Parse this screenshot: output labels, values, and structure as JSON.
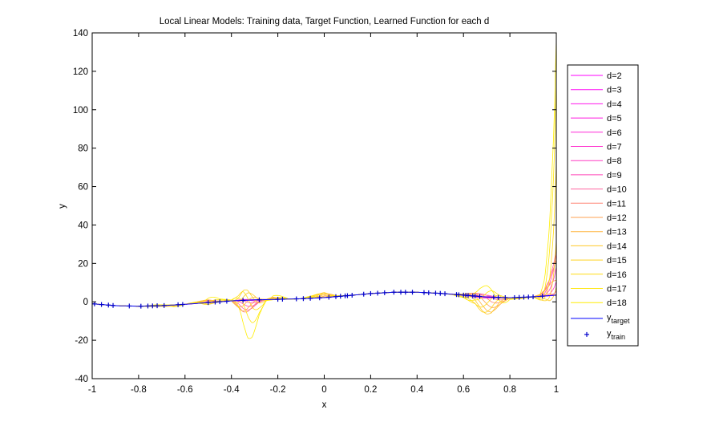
{
  "chart_data": {
    "type": "line",
    "title": "Local Linear Models: Training data, Target Function, Learned Function for each d",
    "xlabel": "x",
    "ylabel": "y",
    "xlim": [
      -1,
      1
    ],
    "ylim": [
      -40,
      140
    ],
    "xticks": [
      -1,
      -0.8,
      -0.6,
      -0.4,
      -0.2,
      0,
      0.2,
      0.4,
      0.6,
      0.8,
      1
    ],
    "xtick_labels": [
      "-1",
      "-0.8",
      "-0.6",
      "-0.4",
      "-0.2",
      "0",
      "0.2",
      "0.4",
      "0.6",
      "0.8",
      "1"
    ],
    "yticks": [
      -40,
      -20,
      0,
      20,
      40,
      60,
      80,
      100,
      120,
      140
    ],
    "ytick_labels": [
      "-40",
      "-20",
      "0",
      "20",
      "40",
      "60",
      "80",
      "100",
      "120",
      "140"
    ],
    "grid": false,
    "legend_position": "right-outside",
    "target_color": "#0000ff",
    "train_marker_color": "#0000cc",
    "series": [
      {
        "name": "d=2",
        "color": "#ff00ff",
        "amp": 0.2
      },
      {
        "name": "d=3",
        "color": "#ff0af5",
        "amp": 0.5
      },
      {
        "name": "d=4",
        "color": "#ff14eb",
        "amp": 0.8
      },
      {
        "name": "d=5",
        "color": "#ff1ee1",
        "amp": 1.0
      },
      {
        "name": "d=6",
        "color": "#ff28d7",
        "amp": 1.3
      },
      {
        "name": "d=7",
        "color": "#ff32cd",
        "amp": 1.6
      },
      {
        "name": "d=8",
        "color": "#ff3cc3",
        "amp": 1.9
      },
      {
        "name": "d=9",
        "color": "#ff46b9",
        "amp": 2.2
      },
      {
        "name": "d=10",
        "color": "#ff64a0",
        "amp": 2.6
      },
      {
        "name": "d=11",
        "color": "#ff8273",
        "amp": 3.0
      },
      {
        "name": "d=12",
        "color": "#ffa050",
        "amp": 3.5
      },
      {
        "name": "d=13",
        "color": "#ffb43c",
        "amp": 4.0
      },
      {
        "name": "d=14",
        "color": "#ffc828",
        "amp": 4.6
      },
      {
        "name": "d=15",
        "color": "#ffd21e",
        "amp": 5.2
      },
      {
        "name": "d=16",
        "color": "#ffdc14",
        "amp": 6.0
      },
      {
        "name": "d=17",
        "color": "#ffe60a",
        "amp": 7.0
      },
      {
        "name": "d=18",
        "color": "#ffee00",
        "amp": 8.0
      }
    ],
    "target_legend": {
      "base": "y",
      "sub": "target"
    },
    "train_legend": {
      "base": "y",
      "sub": "train"
    },
    "target": {
      "x": [
        -1.0,
        -0.9,
        -0.8,
        -0.7,
        -0.6,
        -0.5,
        -0.4,
        -0.3,
        -0.2,
        -0.1,
        0.0,
        0.1,
        0.2,
        0.3,
        0.4,
        0.5,
        0.6,
        0.7,
        0.8,
        0.9,
        1.0
      ],
      "y": [
        -1.0,
        -2.0,
        -2.3,
        -2.0,
        -1.3,
        -0.4,
        0.5,
        1.0,
        1.3,
        1.6,
        2.2,
        3.2,
        4.3,
        5.0,
        5.0,
        4.4,
        3.5,
        2.5,
        2.1,
        2.6,
        3.5
      ]
    },
    "learned_max": {
      "x": [
        -1.0,
        -0.9,
        -0.8,
        -0.72,
        -0.65,
        -0.6,
        -0.55,
        -0.5,
        -0.45,
        -0.4,
        -0.37,
        -0.35,
        -0.33,
        -0.31,
        -0.28,
        -0.25,
        -0.22,
        -0.2,
        -0.15,
        -0.1,
        -0.05,
        0.0,
        0.03,
        0.06,
        0.1,
        0.2,
        0.3,
        0.4,
        0.5,
        0.55,
        0.6,
        0.64,
        0.67,
        0.7,
        0.72,
        0.74,
        0.77,
        0.8,
        0.85,
        0.9,
        0.93,
        0.95,
        0.97,
        0.99,
        0.995,
        1.0
      ],
      "y": [
        -1.0,
        -2.0,
        -2.3,
        -1.5,
        -1.5,
        -1.3,
        1.0,
        4.5,
        1.5,
        1.0,
        4.0,
        9.0,
        9.6,
        6.5,
        2.0,
        1.5,
        5.0,
        4.0,
        1.3,
        1.6,
        4.0,
        7.5,
        6.0,
        3.5,
        3.2,
        4.3,
        5.0,
        5.0,
        4.4,
        3.8,
        5.0,
        8.0,
        9.3,
        8.5,
        7.0,
        5.0,
        3.0,
        2.1,
        1.0,
        2.6,
        6.0,
        15.0,
        40.0,
        90.0,
        115.0,
        138.0
      ]
    },
    "learned_min": {
      "x": [
        -1.0,
        -0.9,
        -0.8,
        -0.7,
        -0.65,
        -0.6,
        -0.55,
        -0.5,
        -0.45,
        -0.4,
        -0.37,
        -0.35,
        -0.33,
        -0.31,
        -0.28,
        -0.25,
        -0.2,
        -0.1,
        0.0,
        0.1,
        0.2,
        0.3,
        0.4,
        0.5,
        0.55,
        0.6,
        0.65,
        0.68,
        0.7,
        0.72,
        0.74,
        0.77,
        0.8,
        0.85,
        0.9,
        0.93,
        0.95,
        0.97,
        0.99,
        1.0
      ],
      "y": [
        -1.0,
        -2.0,
        -2.3,
        -2.8,
        -3.5,
        -1.3,
        -0.5,
        -2.0,
        0.0,
        0.5,
        -10.0,
        -20.5,
        -23.5,
        -19.0,
        -7.0,
        0.5,
        1.3,
        1.6,
        2.2,
        3.2,
        4.3,
        5.0,
        5.0,
        4.4,
        3.8,
        2.0,
        -3.0,
        -11.0,
        -14.5,
        -15.5,
        -12.0,
        -5.0,
        1.0,
        2.0,
        2.6,
        0.0,
        -1.0,
        -2.0,
        1.0,
        1.5
      ]
    },
    "train_x": [
      -0.99,
      -0.96,
      -0.93,
      -0.91,
      -0.84,
      -0.79,
      -0.76,
      -0.74,
      -0.72,
      -0.69,
      -0.63,
      -0.61,
      -0.5,
      -0.47,
      -0.45,
      -0.42,
      -0.35,
      -0.28,
      -0.2,
      -0.18,
      -0.12,
      -0.09,
      -0.06,
      -0.02,
      0.02,
      0.05,
      0.07,
      0.09,
      0.1,
      0.12,
      0.17,
      0.2,
      0.23,
      0.26,
      0.3,
      0.33,
      0.35,
      0.38,
      0.43,
      0.45,
      0.48,
      0.5,
      0.52,
      0.57,
      0.58,
      0.6,
      0.61,
      0.62,
      0.64,
      0.65,
      0.67,
      0.73,
      0.75,
      0.78,
      0.82,
      0.84,
      0.86,
      0.88,
      0.9,
      0.94
    ]
  }
}
